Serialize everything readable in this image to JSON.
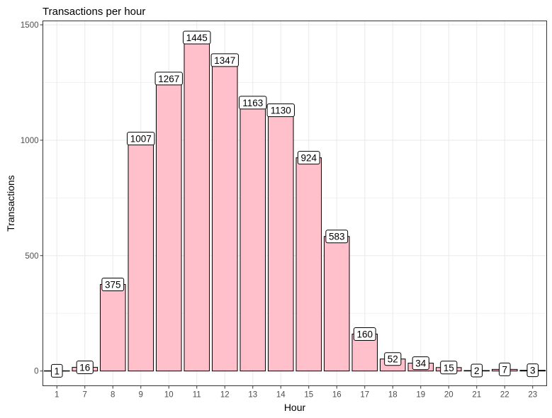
{
  "chart_data": {
    "type": "bar",
    "title": "Transactions per hour",
    "xlabel": "Hour",
    "ylabel": "Transactions",
    "categories": [
      "1",
      "7",
      "8",
      "9",
      "10",
      "11",
      "12",
      "13",
      "14",
      "15",
      "16",
      "17",
      "18",
      "19",
      "20",
      "21",
      "22",
      "23"
    ],
    "values": [
      1,
      16,
      375,
      1007,
      1267,
      1445,
      1347,
      1163,
      1130,
      924,
      583,
      160,
      52,
      34,
      15,
      2,
      7,
      3
    ],
    "ylim": [
      -64,
      1517
    ],
    "yticks": [
      0,
      500,
      1000,
      1500
    ],
    "grid": true,
    "legend": "none",
    "colors": {
      "bar_fill": "#FFC0CB",
      "bar_stroke": "#000000",
      "grid": "#ebebeb",
      "panel_border": "#333333"
    }
  }
}
